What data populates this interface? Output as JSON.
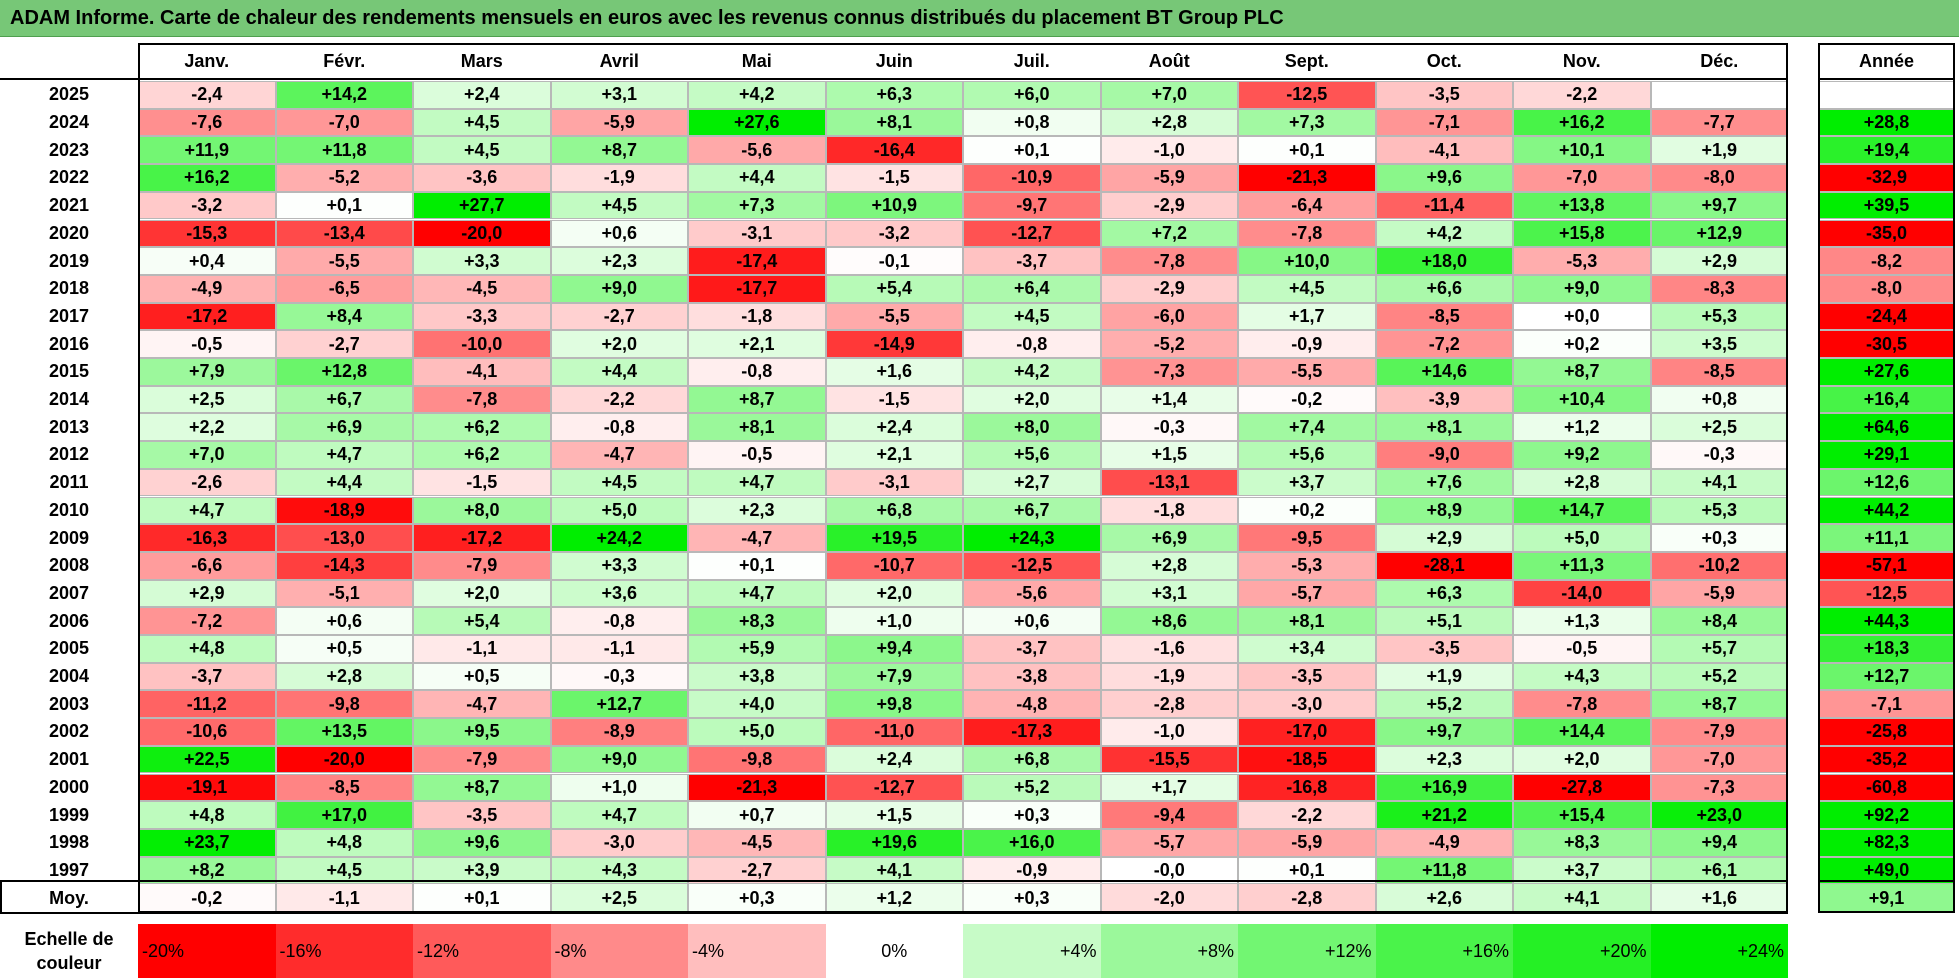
{
  "title": "ADAM Informe. Carte de chaleur des rendements mensuels en euros avec les revenus connus distribués du placement BT Group PLC",
  "chart_data": {
    "type": "heatmap",
    "title": "ADAM Informe. Carte de chaleur des rendements mensuels en euros avec les revenus connus distribués du placement BT Group PLC",
    "columns": [
      "Janv.",
      "Févr.",
      "Mars",
      "Avril",
      "Mai",
      "Juin",
      "Juil.",
      "Août",
      "Sept.",
      "Oct.",
      "Nov.",
      "Déc."
    ],
    "year_header": "Année",
    "rows": [
      {
        "label": "2025",
        "values": [
          -2.4,
          14.2,
          2.4,
          3.1,
          4.2,
          6.3,
          6.0,
          7.0,
          -12.5,
          -3.5,
          -2.2,
          null
        ],
        "year": null
      },
      {
        "label": "2024",
        "values": [
          -7.6,
          -7.0,
          4.5,
          -5.9,
          27.6,
          8.1,
          0.8,
          2.8,
          7.3,
          -7.1,
          16.2,
          -7.7
        ],
        "year": 28.8
      },
      {
        "label": "2023",
        "values": [
          11.9,
          11.8,
          4.5,
          8.7,
          -5.6,
          -16.4,
          0.1,
          -1.0,
          0.1,
          -4.1,
          10.1,
          1.9
        ],
        "year": 19.4
      },
      {
        "label": "2022",
        "values": [
          16.2,
          -5.2,
          -3.6,
          -1.9,
          4.4,
          -1.5,
          -10.9,
          -5.9,
          -21.3,
          9.6,
          -7.0,
          -8.0
        ],
        "year": -32.9
      },
      {
        "label": "2021",
        "values": [
          -3.2,
          0.1,
          27.7,
          4.5,
          7.3,
          10.9,
          -9.7,
          -2.9,
          -6.4,
          -11.4,
          13.8,
          9.7
        ],
        "year": 39.5
      },
      {
        "label": "2020",
        "values": [
          -15.3,
          -13.4,
          -20.0,
          0.6,
          -3.1,
          -3.2,
          -12.7,
          7.2,
          -7.8,
          4.2,
          15.8,
          12.9
        ],
        "year": -35.0
      },
      {
        "label": "2019",
        "values": [
          0.4,
          -5.5,
          3.3,
          2.3,
          -17.4,
          -0.1,
          -3.7,
          -7.8,
          10.0,
          18.0,
          -5.3,
          2.9
        ],
        "year": -8.2
      },
      {
        "label": "2018",
        "values": [
          -4.9,
          -6.5,
          -4.5,
          9.0,
          -17.7,
          5.4,
          6.4,
          -2.9,
          4.5,
          6.6,
          9.0,
          -8.3
        ],
        "year": -8.0
      },
      {
        "label": "2017",
        "values": [
          -17.2,
          8.4,
          -3.3,
          -2.7,
          -1.8,
          -5.5,
          4.5,
          -6.0,
          1.7,
          -8.5,
          0.0,
          5.3
        ],
        "year": -24.4
      },
      {
        "label": "2016",
        "values": [
          -0.5,
          -2.7,
          -10.0,
          2.0,
          2.1,
          -14.9,
          -0.8,
          -5.2,
          -0.9,
          -7.2,
          0.2,
          3.5
        ],
        "year": -30.5
      },
      {
        "label": "2015",
        "values": [
          7.9,
          12.8,
          -4.1,
          4.4,
          -0.8,
          1.6,
          4.2,
          -7.3,
          -5.5,
          14.6,
          8.7,
          -8.5
        ],
        "year": 27.6
      },
      {
        "label": "2014",
        "values": [
          2.5,
          6.7,
          -7.8,
          -2.2,
          8.7,
          -1.5,
          2.0,
          1.4,
          -0.2,
          -3.9,
          10.4,
          0.8
        ],
        "year": 16.4
      },
      {
        "label": "2013",
        "values": [
          2.2,
          6.9,
          6.2,
          -0.8,
          8.1,
          2.4,
          8.0,
          -0.3,
          7.4,
          8.1,
          1.2,
          2.5
        ],
        "year": 64.6
      },
      {
        "label": "2012",
        "values": [
          7.0,
          4.7,
          6.2,
          -4.7,
          -0.5,
          2.1,
          5.6,
          1.5,
          5.6,
          -9.0,
          9.2,
          -0.3
        ],
        "year": 29.1
      },
      {
        "label": "2011",
        "values": [
          -2.6,
          4.4,
          -1.5,
          4.5,
          4.7,
          -3.1,
          2.7,
          -13.1,
          3.7,
          7.6,
          2.8,
          4.1
        ],
        "year": 12.6
      },
      {
        "label": "2010",
        "values": [
          4.7,
          -18.9,
          8.0,
          5.0,
          2.3,
          6.8,
          6.7,
          -1.8,
          0.2,
          8.9,
          14.7,
          5.3
        ],
        "year": 44.2
      },
      {
        "label": "2009",
        "values": [
          -16.3,
          -13.0,
          -17.2,
          24.2,
          -4.7,
          19.5,
          24.3,
          6.9,
          -9.5,
          2.9,
          5.0,
          0.3
        ],
        "year": 11.1
      },
      {
        "label": "2008",
        "values": [
          -6.6,
          -14.3,
          -7.9,
          3.3,
          0.1,
          -10.7,
          -12.5,
          2.8,
          -5.3,
          -28.1,
          11.3,
          -10.2
        ],
        "year": -57.1
      },
      {
        "label": "2007",
        "values": [
          2.9,
          -5.1,
          2.0,
          3.6,
          4.7,
          2.0,
          -5.6,
          3.1,
          -5.7,
          6.3,
          -14.0,
          -5.9
        ],
        "year": -12.5
      },
      {
        "label": "2006",
        "values": [
          -7.2,
          0.6,
          5.4,
          -0.8,
          8.3,
          1.0,
          0.6,
          8.6,
          8.1,
          5.1,
          1.3,
          8.4
        ],
        "year": 44.3
      },
      {
        "label": "2005",
        "values": [
          4.8,
          0.5,
          -1.1,
          -1.1,
          5.9,
          9.4,
          -3.7,
          -1.6,
          3.4,
          -3.5,
          -0.5,
          5.7
        ],
        "year": 18.3
      },
      {
        "label": "2004",
        "values": [
          -3.7,
          2.8,
          0.5,
          -0.3,
          3.8,
          7.9,
          -3.8,
          -1.9,
          -3.5,
          1.9,
          4.3,
          5.2
        ],
        "year": 12.7
      },
      {
        "label": "2003",
        "values": [
          -11.2,
          -9.8,
          -4.7,
          12.7,
          4.0,
          9.8,
          -4.8,
          -2.8,
          -3.0,
          5.2,
          -7.8,
          8.7
        ],
        "year": -7.1
      },
      {
        "label": "2002",
        "values": [
          -10.6,
          13.5,
          9.5,
          -8.9,
          5.0,
          -11.0,
          -17.3,
          -1.0,
          -17.0,
          9.7,
          14.4,
          -7.9
        ],
        "year": -25.8
      },
      {
        "label": "2001",
        "values": [
          22.5,
          -20.0,
          -7.9,
          9.0,
          -9.8,
          2.4,
          6.8,
          -15.5,
          -18.5,
          2.3,
          2.0,
          -7.0
        ],
        "year": -35.2
      },
      {
        "label": "2000",
        "values": [
          -19.1,
          -8.5,
          8.7,
          1.0,
          -21.3,
          -12.7,
          5.2,
          1.7,
          -16.8,
          16.9,
          -27.8,
          -7.3
        ],
        "year": -60.8
      },
      {
        "label": "1999",
        "values": [
          4.8,
          17.0,
          -3.5,
          4.7,
          0.7,
          1.5,
          0.3,
          -9.4,
          -2.2,
          21.2,
          15.4,
          23.0
        ],
        "year": 92.2
      },
      {
        "label": "1998",
        "values": [
          23.7,
          4.8,
          9.6,
          -3.0,
          -4.5,
          19.6,
          16.0,
          -5.7,
          -5.9,
          -4.9,
          8.3,
          9.4
        ],
        "year": 82.3
      },
      {
        "label": "1997",
        "values": [
          8.2,
          4.5,
          3.9,
          4.3,
          -2.7,
          4.1,
          -0.9,
          -0.0,
          0.1,
          11.8,
          3.7,
          6.1
        ],
        "year": 49.0
      }
    ],
    "average": {
      "label": "Moy.",
      "values": [
        -0.2,
        -1.1,
        0.1,
        2.5,
        0.3,
        1.2,
        0.3,
        -2.0,
        -2.8,
        2.6,
        4.1,
        1.6
      ],
      "year": 9.1
    },
    "scale": {
      "label": "Echelle de couleur",
      "steps": [
        {
          "label": "-20%",
          "value": -20,
          "align": "left"
        },
        {
          "label": "-16%",
          "value": -16,
          "align": "left"
        },
        {
          "label": "-12%",
          "value": -12,
          "align": "left"
        },
        {
          "label": "-8%",
          "value": -8,
          "align": "left"
        },
        {
          "label": "-4%",
          "value": -4,
          "align": "left"
        },
        {
          "label": "0%",
          "value": 0,
          "align": "center"
        },
        {
          "label": "+4%",
          "value": 4,
          "align": "right"
        },
        {
          "label": "+8%",
          "value": 8,
          "align": "right"
        },
        {
          "label": "+12%",
          "value": 12,
          "align": "right"
        },
        {
          "label": "+16%",
          "value": 16,
          "align": "right"
        },
        {
          "label": "+20%",
          "value": 20,
          "align": "right"
        },
        {
          "label": "+24%",
          "value": 24,
          "align": "right"
        }
      ]
    },
    "colors": {
      "negative_max": "#ff0000",
      "neutral": "#ffffff",
      "positive_max": "#00ee00"
    },
    "color_range": [
      -20,
      24
    ]
  }
}
